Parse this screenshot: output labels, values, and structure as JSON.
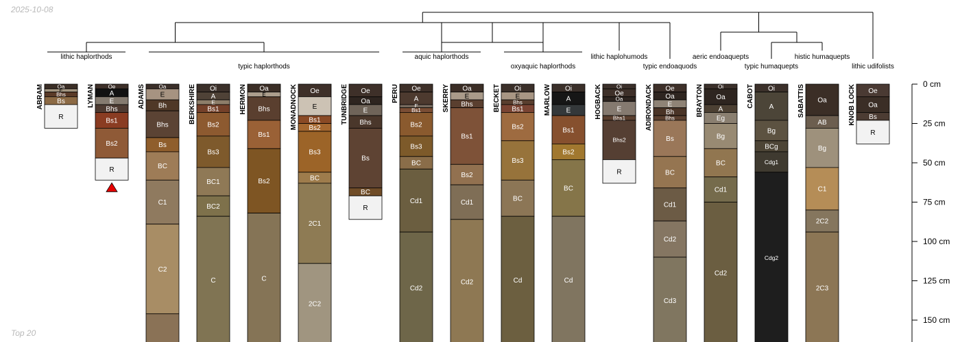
{
  "meta": {
    "date": "2025-10-08",
    "footer": "Top 20",
    "marker_color": "#e60000"
  },
  "depth_axis": {
    "unit": "cm",
    "ticks": [
      {
        "depth": 0,
        "label": "0 cm"
      },
      {
        "depth": 25,
        "label": "25 cm"
      },
      {
        "depth": 50,
        "label": "50 cm"
      },
      {
        "depth": 75,
        "label": "75 cm"
      },
      {
        "depth": 100,
        "label": "100 cm"
      },
      {
        "depth": 125,
        "label": "125 cm"
      },
      {
        "depth": 150,
        "label": "150 cm"
      }
    ]
  },
  "subgroups": [
    {
      "label": "lithic haplorthods",
      "members": [
        0,
        1
      ]
    },
    {
      "label": "typic haplorthods",
      "members": [
        2,
        3,
        4,
        5,
        6
      ]
    },
    {
      "label": "aquic haplorthods",
      "members": [
        7,
        8
      ]
    },
    {
      "label": "oxyaquic haplorthods",
      "members": [
        9,
        10
      ]
    },
    {
      "label": "lithic haplohumods",
      "members": [
        11
      ]
    },
    {
      "label": "typic endoaquods",
      "members": [
        12
      ]
    },
    {
      "label": "aeric endoaquepts",
      "members": [
        13
      ]
    },
    {
      "label": "typic humaquepts",
      "members": [
        14
      ]
    },
    {
      "label": "histic humaquepts",
      "members": [
        15
      ]
    },
    {
      "label": "lithic udifolists",
      "members": [
        16
      ]
    }
  ],
  "profiles": [
    {
      "name": "ABRAM",
      "horizons": [
        {
          "name": "Oa",
          "top": 0,
          "bottom": 3,
          "color": "#3b2e26"
        },
        {
          "name": "E",
          "top": 3,
          "bottom": 5,
          "color": "#a39580"
        },
        {
          "name": "Bhs",
          "top": 5,
          "bottom": 8,
          "color": "#5a3a28"
        },
        {
          "name": "Bs",
          "top": 8,
          "bottom": 13,
          "color": "#8c6a45"
        },
        {
          "name": "R",
          "top": 13,
          "bottom": 28,
          "color": "#f2f2f2"
        }
      ]
    },
    {
      "name": "LYMAN",
      "marker": true,
      "horizons": [
        {
          "name": "Oe",
          "top": 0,
          "bottom": 3,
          "color": "#3e3029"
        },
        {
          "name": "A",
          "top": 3,
          "bottom": 8,
          "color": "#121212"
        },
        {
          "name": "E",
          "top": 8,
          "bottom": 13,
          "color": "#857b70"
        },
        {
          "name": "Bhs",
          "top": 13,
          "bottom": 18,
          "color": "#4e3b32"
        },
        {
          "name": "Bs1",
          "top": 18,
          "bottom": 28,
          "color": "#8a3c22"
        },
        {
          "name": "Bs2",
          "top": 28,
          "bottom": 47,
          "color": "#8f5a37"
        },
        {
          "name": "R",
          "top": 47,
          "bottom": 61,
          "color": "#f2f2f2"
        }
      ]
    },
    {
      "name": "ADAMS",
      "horizons": [
        {
          "name": "Oa",
          "top": 0,
          "bottom": 3,
          "color": "#3b2f29"
        },
        {
          "name": "E",
          "top": 3,
          "bottom": 10,
          "color": "#a69381"
        },
        {
          "name": "Bh",
          "top": 10,
          "bottom": 17,
          "color": "#4f3827"
        },
        {
          "name": "Bhs",
          "top": 17,
          "bottom": 34,
          "color": "#5b4334"
        },
        {
          "name": "Bs",
          "top": 34,
          "bottom": 43,
          "color": "#8f5e2c"
        },
        {
          "name": "BC",
          "top": 43,
          "bottom": 61,
          "color": "#9e7c57"
        },
        {
          "name": "C1",
          "top": 61,
          "bottom": 89,
          "color": "#8f7a5f"
        },
        {
          "name": "C2",
          "top": 89,
          "bottom": 146,
          "color": "#a88d65"
        },
        {
          "name": "",
          "top": 146,
          "bottom": 165,
          "color": "#8a7256"
        }
      ]
    },
    {
      "name": "BERKSHIRE",
      "horizons": [
        {
          "name": "Oi",
          "top": 0,
          "bottom": 5,
          "color": "#3b302a"
        },
        {
          "name": "A",
          "top": 5,
          "bottom": 10,
          "color": "#4f4237"
        },
        {
          "name": "E",
          "top": 10,
          "bottom": 13,
          "color": "#8d7d69"
        },
        {
          "name": "Bs1",
          "top": 13,
          "bottom": 18,
          "color": "#744029"
        },
        {
          "name": "Bs2",
          "top": 18,
          "bottom": 33,
          "color": "#8d5a30"
        },
        {
          "name": "Bs3",
          "top": 33,
          "bottom": 53,
          "color": "#7e5a2c"
        },
        {
          "name": "BC1",
          "top": 53,
          "bottom": 71,
          "color": "#8f7956"
        },
        {
          "name": "BC2",
          "top": 71,
          "bottom": 84,
          "color": "#7e714b"
        },
        {
          "name": "C",
          "top": 84,
          "bottom": 165,
          "color": "#807453"
        }
      ]
    },
    {
      "name": "HERMON",
      "horizons": [
        {
          "name": "Oa",
          "top": 0,
          "bottom": 5,
          "color": "#3b2e26"
        },
        {
          "name": "E",
          "top": 5,
          "bottom": 8,
          "color": "#ab9d8c"
        },
        {
          "name": "Bhs",
          "top": 8,
          "bottom": 23,
          "color": "#5a3f2f"
        },
        {
          "name": "Bs1",
          "top": 23,
          "bottom": 41,
          "color": "#9a6136"
        },
        {
          "name": "Bs2",
          "top": 41,
          "bottom": 82,
          "color": "#7e5523"
        },
        {
          "name": "C",
          "top": 82,
          "bottom": 165,
          "color": "#857456"
        }
      ]
    },
    {
      "name": "MONADNOCK",
      "horizons": [
        {
          "name": "Oe",
          "top": 0,
          "bottom": 8,
          "color": "#3e3029"
        },
        {
          "name": "E",
          "top": 8,
          "bottom": 20,
          "color": "#ccc2b4"
        },
        {
          "name": "Bs1",
          "top": 20,
          "bottom": 25,
          "color": "#8a4a25"
        },
        {
          "name": "Bs2",
          "top": 25,
          "bottom": 30,
          "color": "#a5672f"
        },
        {
          "name": "Bs3",
          "top": 30,
          "bottom": 56,
          "color": "#9c6428"
        },
        {
          "name": "BC",
          "top": 56,
          "bottom": 63,
          "color": "#9e7c4c"
        },
        {
          "name": "2C1",
          "top": 63,
          "bottom": 114,
          "color": "#8e7b54"
        },
        {
          "name": "2C2",
          "top": 114,
          "bottom": 165,
          "color": "#a09580"
        }
      ]
    },
    {
      "name": "TUNBRIDGE",
      "horizons": [
        {
          "name": "Oe",
          "top": 0,
          "bottom": 8,
          "color": "#3e3029"
        },
        {
          "name": "Oa",
          "top": 8,
          "bottom": 13,
          "color": "#2e2520"
        },
        {
          "name": "E",
          "top": 13,
          "bottom": 20,
          "color": "#6f6459"
        },
        {
          "name": "Bhs",
          "top": 20,
          "bottom": 28,
          "color": "#4a372b"
        },
        {
          "name": "Bs",
          "top": 28,
          "bottom": 66,
          "color": "#5e4333"
        },
        {
          "name": "BC",
          "top": 66,
          "bottom": 71,
          "color": "#704d28"
        },
        {
          "name": "R",
          "top": 71,
          "bottom": 86,
          "color": "#f2f2f2"
        }
      ]
    },
    {
      "name": "PERU",
      "horizons": [
        {
          "name": "Oe",
          "top": 0,
          "bottom": 5,
          "color": "#3e3029"
        },
        {
          "name": "A",
          "top": 5,
          "bottom": 13,
          "color": "#4d3a2f"
        },
        {
          "name": "E",
          "top": 13,
          "bottom": 15,
          "color": "#75685c"
        },
        {
          "name": "Bs1",
          "top": 15,
          "bottom": 18,
          "color": "#7a4d34"
        },
        {
          "name": "Bs2",
          "top": 18,
          "bottom": 33,
          "color": "#8a5a2e"
        },
        {
          "name": "Bs3",
          "top": 33,
          "bottom": 46,
          "color": "#7d5a2a"
        },
        {
          "name": "BC",
          "top": 46,
          "bottom": 54,
          "color": "#8a6d49"
        },
        {
          "name": "Cd1",
          "top": 54,
          "bottom": 94,
          "color": "#6b5e40"
        },
        {
          "name": "Cd2",
          "top": 94,
          "bottom": 165,
          "color": "#6e6649"
        }
      ]
    },
    {
      "name": "SKERRY",
      "horizons": [
        {
          "name": "Oa",
          "top": 0,
          "bottom": 5,
          "color": "#3b2e26"
        },
        {
          "name": "E",
          "top": 5,
          "bottom": 10,
          "color": "#aa9b8a"
        },
        {
          "name": "Bhs",
          "top": 10,
          "bottom": 15,
          "color": "#5a3f2f"
        },
        {
          "name": "Bs1",
          "top": 15,
          "bottom": 51,
          "color": "#7e5238"
        },
        {
          "name": "Bs2",
          "top": 51,
          "bottom": 64,
          "color": "#927150"
        },
        {
          "name": "Cd1",
          "top": 64,
          "bottom": 86,
          "color": "#7f6e56"
        },
        {
          "name": "Cd2",
          "top": 86,
          "bottom": 165,
          "color": "#8e7853"
        }
      ]
    },
    {
      "name": "BECKET",
      "horizons": [
        {
          "name": "Oi",
          "top": 0,
          "bottom": 5,
          "color": "#3b302a"
        },
        {
          "name": "E",
          "top": 5,
          "bottom": 10,
          "color": "#a89684"
        },
        {
          "name": "Bhs",
          "top": 10,
          "bottom": 13,
          "color": "#5a3f2f"
        },
        {
          "name": "Bs1",
          "top": 13,
          "bottom": 18,
          "color": "#7a4433"
        },
        {
          "name": "Bs2",
          "top": 18,
          "bottom": 36,
          "color": "#9e6b40"
        },
        {
          "name": "Bs3",
          "top": 36,
          "bottom": 61,
          "color": "#97733b"
        },
        {
          "name": "BC",
          "top": 61,
          "bottom": 84,
          "color": "#8c7656"
        },
        {
          "name": "Cd",
          "top": 84,
          "bottom": 165,
          "color": "#6c5f40"
        }
      ]
    },
    {
      "name": "MARLOW",
      "horizons": [
        {
          "name": "Oi",
          "top": 0,
          "bottom": 5,
          "color": "#3b302a"
        },
        {
          "name": "A",
          "top": 5,
          "bottom": 13,
          "color": "#161616"
        },
        {
          "name": "E",
          "top": 13,
          "bottom": 20,
          "color": "#34383a"
        },
        {
          "name": "Bs1",
          "top": 20,
          "bottom": 38,
          "color": "#86502e"
        },
        {
          "name": "Bs2",
          "top": 38,
          "bottom": 48,
          "color": "#a1782f"
        },
        {
          "name": "BC",
          "top": 48,
          "bottom": 84,
          "color": "#857549"
        },
        {
          "name": "Cd",
          "top": 84,
          "bottom": 165,
          "color": "#807560"
        }
      ]
    },
    {
      "name": "HOGBACK",
      "horizons": [
        {
          "name": "Oi",
          "top": 0,
          "bottom": 3,
          "color": "#3b302a"
        },
        {
          "name": "Oe",
          "top": 3,
          "bottom": 8,
          "color": "#3e3029"
        },
        {
          "name": "Oa",
          "top": 8,
          "bottom": 11,
          "color": "#2e2520"
        },
        {
          "name": "E",
          "top": 11,
          "bottom": 20,
          "color": "#857a70"
        },
        {
          "name": "Bhs1",
          "top": 20,
          "bottom": 23,
          "color": "#5a3f2f"
        },
        {
          "name": "Bhs2",
          "top": 23,
          "bottom": 48,
          "color": "#553f33"
        },
        {
          "name": "R",
          "top": 48,
          "bottom": 63,
          "color": "#f2f2f2"
        }
      ]
    },
    {
      "name": "ADIRONDACK",
      "horizons": [
        {
          "name": "Oe",
          "top": 0,
          "bottom": 5,
          "color": "#3e3029"
        },
        {
          "name": "Oa",
          "top": 5,
          "bottom": 10,
          "color": "#2e2520"
        },
        {
          "name": "E",
          "top": 10,
          "bottom": 15,
          "color": "#8f8376"
        },
        {
          "name": "Bh",
          "top": 15,
          "bottom": 20,
          "color": "#4a3427"
        },
        {
          "name": "Bhs",
          "top": 20,
          "bottom": 23,
          "color": "#5a3f2f"
        },
        {
          "name": "Bs",
          "top": 23,
          "bottom": 46,
          "color": "#9a7759"
        },
        {
          "name": "BC",
          "top": 46,
          "bottom": 66,
          "color": "#957551"
        },
        {
          "name": "Cd1",
          "top": 66,
          "bottom": 87,
          "color": "#6c5b45"
        },
        {
          "name": "Cd2",
          "top": 87,
          "bottom": 110,
          "color": "#857662"
        },
        {
          "name": "Cd3",
          "top": 110,
          "bottom": 165,
          "color": "#807660"
        }
      ]
    },
    {
      "name": "BRAYTON",
      "horizons": [
        {
          "name": "Oi",
          "top": 0,
          "bottom": 3,
          "color": "#3b302a"
        },
        {
          "name": "Oa",
          "top": 3,
          "bottom": 13,
          "color": "#2e2520"
        },
        {
          "name": "A",
          "top": 13,
          "bottom": 18,
          "color": "#4c4033"
        },
        {
          "name": "Eg",
          "top": 18,
          "bottom": 25,
          "color": "#8a7f70"
        },
        {
          "name": "Bg",
          "top": 25,
          "bottom": 41,
          "color": "#988a73"
        },
        {
          "name": "BC",
          "top": 41,
          "bottom": 59,
          "color": "#917650"
        },
        {
          "name": "Cd1",
          "top": 59,
          "bottom": 75,
          "color": "#756b4c"
        },
        {
          "name": "Cd2",
          "top": 75,
          "bottom": 165,
          "color": "#6b5e41"
        }
      ]
    },
    {
      "name": "CABOT",
      "horizons": [
        {
          "name": "Oi",
          "top": 0,
          "bottom": 5,
          "color": "#3b302a"
        },
        {
          "name": "A",
          "top": 5,
          "bottom": 23,
          "color": "#4c4538"
        },
        {
          "name": "Bg",
          "top": 23,
          "bottom": 36,
          "color": "#5c5241"
        },
        {
          "name": "BCg",
          "top": 36,
          "bottom": 43,
          "color": "#4d4536"
        },
        {
          "name": "Cdg1",
          "top": 43,
          "bottom": 56,
          "color": "#3f3a30"
        },
        {
          "name": "Cdg2",
          "top": 56,
          "bottom": 165,
          "color": "#1e1e1e"
        }
      ]
    },
    {
      "name": "SABATTIS",
      "horizons": [
        {
          "name": "Oa",
          "top": 0,
          "bottom": 20,
          "color": "#3b2e26"
        },
        {
          "name": "AB",
          "top": 20,
          "bottom": 28,
          "color": "#6c5e4f"
        },
        {
          "name": "Bg",
          "top": 28,
          "bottom": 53,
          "color": "#9e917c"
        },
        {
          "name": "C1",
          "top": 53,
          "bottom": 80,
          "color": "#b58d57"
        },
        {
          "name": "2C2",
          "top": 80,
          "bottom": 94,
          "color": "#85765e"
        },
        {
          "name": "2C3",
          "top": 94,
          "bottom": 165,
          "color": "#8c7655"
        }
      ]
    },
    {
      "name": "KNOB LOCK",
      "horizons": [
        {
          "name": "Oe",
          "top": 0,
          "bottom": 8,
          "color": "#4a3a33"
        },
        {
          "name": "Oa",
          "top": 8,
          "bottom": 18,
          "color": "#3b2e26"
        },
        {
          "name": "Bs",
          "top": 18,
          "bottom": 23,
          "color": "#4c3c33"
        },
        {
          "name": "R",
          "top": 23,
          "bottom": 38,
          "color": "#f2f2f2"
        }
      ]
    }
  ]
}
